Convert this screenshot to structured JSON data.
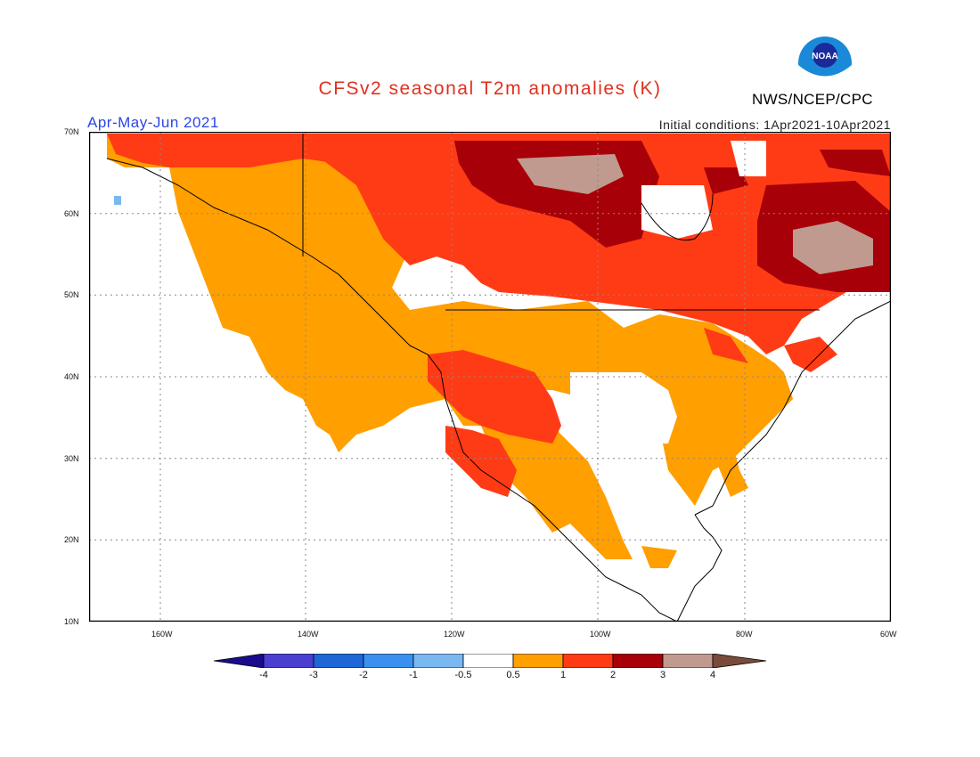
{
  "title": "CFSv2 seasonal T2m anomalies (K)",
  "period": "Apr-May-Jun 2021",
  "initial_conditions": "Initial conditions: 1Apr2021-10Apr2021",
  "agency": "NWS/NCEP/CPC",
  "logo_text": "NOAA",
  "lat_labels": [
    "70N",
    "60N",
    "50N",
    "40N",
    "30N",
    "20N",
    "10N"
  ],
  "lon_labels": [
    "160W",
    "140W",
    "120W",
    "100W",
    "80W",
    "60W"
  ],
  "colorbar": {
    "labels": [
      "-4",
      "-3",
      "-2",
      "-1",
      "-0.5",
      "0.5",
      "1",
      "2",
      "3",
      "4"
    ],
    "colors": [
      "#1a0c8c",
      "#4a3fd0",
      "#1f66d6",
      "#3a90ee",
      "#7ab8f2",
      "#ffffff",
      "#ff9f00",
      "#ff3b16",
      "#a80008",
      "#c09a8e",
      "#7a4a3a"
    ]
  },
  "anomaly_colors": {
    "band_0_5_1": "#ff9f00",
    "band_1_2": "#ff3b16",
    "band_2_3": "#a80008",
    "band_3_4": "#c09a8e",
    "band_neg_0_5_1": "#7ab8f2"
  }
}
